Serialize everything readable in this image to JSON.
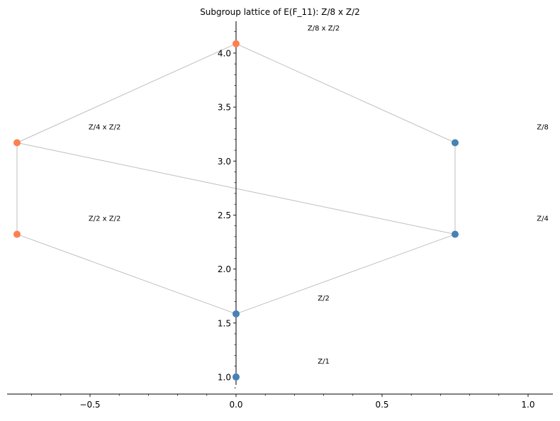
{
  "chart_data": {
    "type": "scatter",
    "title": "Subgroup lattice of E(F_11): Z/8 x Z/2",
    "xlabel": "",
    "ylabel": "",
    "xlim": [
      -0.784,
      1.085
    ],
    "ylim": [
      0.842,
      4.295
    ],
    "grid": false,
    "x_ticks": [
      -0.5,
      0.0,
      0.5,
      1.0
    ],
    "x_tick_labels": [
      "−0.5",
      "0.0",
      "0.5",
      "1.0"
    ],
    "y_ticks": [
      1.0,
      1.5,
      2.0,
      2.5,
      3.0,
      3.5,
      4.0
    ],
    "y_tick_labels": [
      "1.0",
      "1.5",
      "2.0",
      "2.5",
      "3.0",
      "3.5",
      "4.0"
    ],
    "colors": {
      "cyclic": "#4682b4",
      "non_cyclic": "#ff7f50",
      "edge": "#bfbfbf"
    },
    "nodes": [
      {
        "label": "Z/1",
        "x": 0.0,
        "y": 1.0,
        "color": "#4682b4"
      },
      {
        "label": "Z/2",
        "x": 0.0,
        "y": 1.585,
        "color": "#4682b4"
      },
      {
        "label": "Z/4",
        "x": 0.75,
        "y": 2.322,
        "color": "#4682b4"
      },
      {
        "label": "Z/8",
        "x": 0.75,
        "y": 3.17,
        "color": "#4682b4"
      },
      {
        "label": "Z/2 x Z/2",
        "x": -0.75,
        "y": 2.322,
        "color": "#ff7f50"
      },
      {
        "label": "Z/4 x Z/2",
        "x": -0.75,
        "y": 3.17,
        "color": "#ff7f50"
      },
      {
        "label": "Z/8 x Z/2",
        "x": 0.0,
        "y": 4.087,
        "color": "#ff7f50"
      }
    ],
    "edges": [
      [
        "Z/1",
        "Z/2"
      ],
      [
        "Z/2",
        "Z/2 x Z/2"
      ],
      [
        "Z/2",
        "Z/4"
      ],
      [
        "Z/2 x Z/2",
        "Z/4 x Z/2"
      ],
      [
        "Z/4",
        "Z/4 x Z/2"
      ],
      [
        "Z/4",
        "Z/8"
      ],
      [
        "Z/4 x Z/2",
        "Z/8 x Z/2"
      ],
      [
        "Z/8",
        "Z/8 x Z/2"
      ]
    ]
  }
}
